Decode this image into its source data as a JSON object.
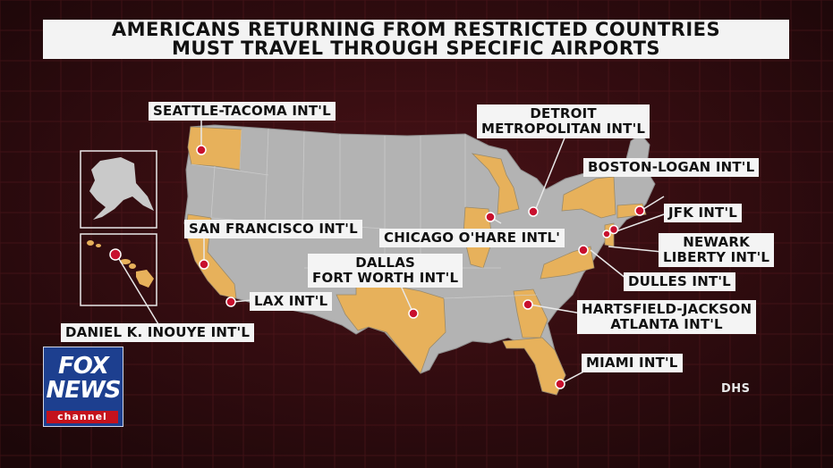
{
  "title": {
    "line1": "AMERICANS RETURNING FROM RESTRICTED COUNTRIES",
    "line2": "MUST TRAVEL THROUGH SPECIFIC AIRPORTS"
  },
  "airports": {
    "seattle": "SEATTLE-TACOMA INT'L",
    "detroit_1": "DETROIT",
    "detroit_2": "METROPOLITAN INT'L",
    "boston": "BOSTON-LOGAN INT'L",
    "jfk": "JFK  INT'L",
    "newark_1": "NEWARK",
    "newark_2": "LIBERTY INT'L",
    "sanfrancisco": "SAN FRANCISCO INT'L",
    "chicago": "CHICAGO O'HARE INTL'",
    "dallas_1": "DALLAS",
    "dallas_2": "FORT WORTH INT'L",
    "dulles": "DULLES INT'L",
    "lax": "LAX INT'L",
    "atlanta_1": "HARTSFIELD-JACKSON",
    "atlanta_2": "ATLANTA INT'L",
    "honolulu": "DANIEL K. INOUYE INT'L",
    "miami": "MIAMI  INT'L"
  },
  "source": "DHS",
  "logo": {
    "word1": "FOX",
    "word2": "NEWS",
    "word3": "channel"
  },
  "colors": {
    "highlight_state": "#e7b15b",
    "other_state": "#b3b3b3",
    "airport_marker": "#c8102e",
    "background": "#3a0d12"
  }
}
